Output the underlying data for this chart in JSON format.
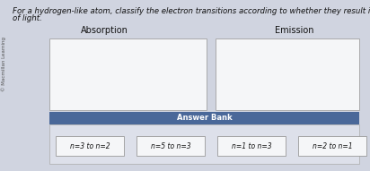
{
  "title_line1": "For a hydrogen-like atom, classify the electron transitions according to whether they result in the absorption or emission",
  "title_line2": "of light.",
  "absorption_label": "Absorption",
  "emission_label": "Emission",
  "answer_bank_label": "Answer Bank",
  "answer_items": [
    "n=3 to n=2",
    "n=5 to n=3",
    "n=1 to n=3",
    "n=2 to n=1"
  ],
  "bg_color": "#d0d4e0",
  "box_bg": "#f5f6f8",
  "answer_bank_header_color": "#4a6899",
  "answer_bank_bg": "#dde0ea",
  "answer_item_border": "#999999",
  "text_color": "#111111",
  "title_fontsize": 6.2,
  "label_fontsize": 7.0,
  "answer_bank_fontsize": 6.0,
  "item_fontsize": 5.5,
  "copyright_text": "© Macmillan Learning"
}
